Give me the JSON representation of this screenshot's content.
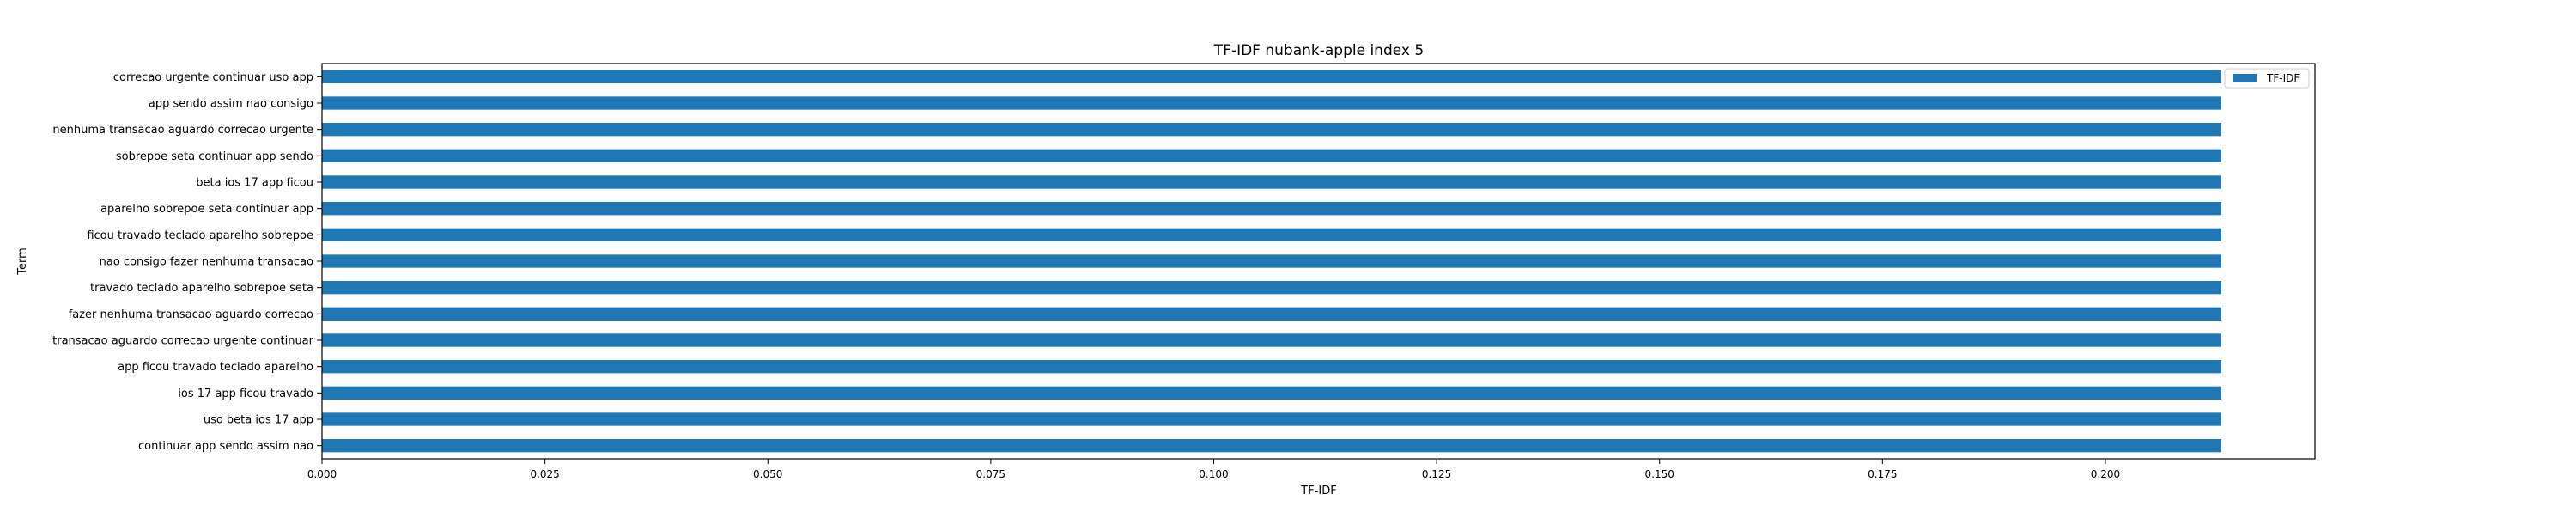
{
  "chart_data": {
    "type": "bar",
    "orientation": "horizontal",
    "title": "TF-IDF nubank-apple index 5",
    "xlabel": "TF-IDF",
    "ylabel": "Term",
    "xlim": [
      0.0,
      0.2235
    ],
    "xticks": [
      "0.000",
      "0.025",
      "0.050",
      "0.075",
      "0.100",
      "0.125",
      "0.150",
      "0.175",
      "0.200"
    ],
    "categories": [
      "correcao urgente continuar uso app",
      "app sendo assim nao consigo",
      "nenhuma transacao aguardo correcao urgente",
      "sobrepoe seta continuar app sendo",
      "beta ios 17 app ficou",
      "aparelho sobrepoe seta continuar app",
      "ficou travado teclado aparelho sobrepoe",
      "nao consigo fazer nenhuma transacao",
      "travado teclado aparelho sobrepoe seta",
      "fazer nenhuma transacao aguardo correcao",
      "transacao aguardo correcao urgente continuar",
      "app ficou travado teclado aparelho",
      "ios 17 app ficou travado",
      "uso beta ios 17 app",
      "continuar app sendo assim nao"
    ],
    "series": [
      {
        "name": "TF-IDF",
        "color": "#1f77b4",
        "values": [
          0.213,
          0.213,
          0.213,
          0.213,
          0.213,
          0.213,
          0.213,
          0.213,
          0.213,
          0.213,
          0.213,
          0.213,
          0.213,
          0.213,
          0.213
        ]
      }
    ],
    "legend": "top-right",
    "grid": false
  }
}
